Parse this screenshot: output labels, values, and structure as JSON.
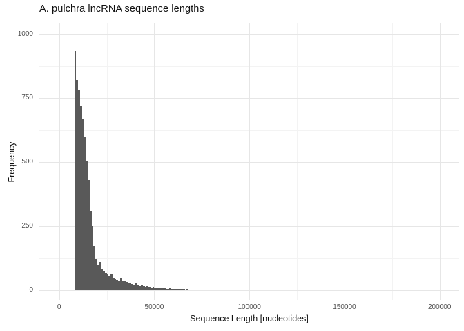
{
  "chart_data": {
    "type": "bar",
    "subtype": "histogram",
    "title": "A. pulchra lncRNA sequence lengths",
    "xlabel": "Sequence Length [nucleotides]",
    "ylabel": "Frequency",
    "x_tick_values": [
      0,
      50000,
      100000,
      150000,
      200000
    ],
    "x_tick_labels": [
      "0",
      "50000",
      "100000",
      "150000",
      "200000"
    ],
    "x_minor_tick_values": [
      25000,
      75000,
      125000,
      175000
    ],
    "y_tick_values": [
      0,
      250,
      500,
      750,
      1000
    ],
    "y_tick_labels": [
      "0",
      "250",
      "500",
      "750",
      "1000"
    ],
    "y_minor_tick_values": [
      125,
      375,
      625,
      875
    ],
    "xlim": [
      -10400,
      210000
    ],
    "ylim": [
      -40,
      1045
    ],
    "grid": true,
    "legend": "none",
    "bar_color": "#595959",
    "grid_major_color": "#e6e6e6",
    "grid_minor_color": "#f3f3f3",
    "axis_text_color": "#4d4d4d",
    "title_color": "#111111",
    "background_color": "#ffffff",
    "bin_width": 1000,
    "bin_start": 8000,
    "peak_frequency": 934,
    "frequencies": [
      934,
      822,
      780,
      721,
      667,
      600,
      502,
      430,
      310,
      250,
      170,
      120,
      95,
      110,
      82,
      74,
      66,
      60,
      54,
      64,
      48,
      44,
      40,
      37,
      48,
      33,
      37,
      30,
      27,
      29,
      23,
      21,
      25,
      18,
      16,
      19,
      14,
      12,
      14,
      11,
      10,
      12,
      8,
      7,
      9,
      6,
      6,
      7,
      5,
      5,
      6,
      4,
      4,
      5,
      3,
      3,
      4,
      3,
      2,
      3,
      2,
      2,
      2,
      1,
      2,
      1,
      2,
      1,
      1,
      2,
      0,
      1,
      1,
      0,
      1,
      1,
      0,
      2,
      1,
      0,
      1,
      1,
      2,
      0,
      1,
      0,
      1,
      0,
      1,
      2,
      0,
      1,
      2,
      1,
      0,
      2
    ]
  }
}
